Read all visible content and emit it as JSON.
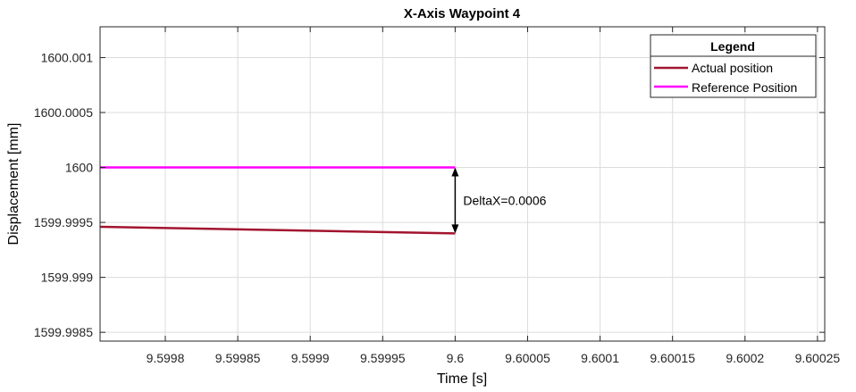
{
  "chart_data": {
    "type": "line",
    "title": "X-Axis Waypoint 4",
    "xlabel": "Time [s]",
    "ylabel": "Displacement [mm]",
    "xlim": [
      9.599755,
      9.600255
    ],
    "ylim": [
      1599.99842,
      1600.00128
    ],
    "x_ticks": [
      9.5998,
      9.59985,
      9.5999,
      9.59995,
      9.6,
      9.60005,
      9.6001,
      9.60015,
      9.6002,
      9.60025
    ],
    "x_tick_labels": [
      "9.5998",
      "9.59985",
      "9.5999",
      "9.59995",
      "9.6",
      "9.60005",
      "9.6001",
      "9.60015",
      "9.6002",
      "9.60025"
    ],
    "y_ticks": [
      1599.9985,
      1599.999,
      1599.9995,
      1600,
      1600.0005,
      1600.001
    ],
    "y_tick_labels": [
      "1599.9985",
      "1599.999",
      "1599.9995",
      "1600",
      "1600.0005",
      "1600.001"
    ],
    "grid": true,
    "legend": {
      "title": "Legend",
      "position": "top-right"
    },
    "series": [
      {
        "name": "Actual position",
        "color": "#a2142f",
        "x": [
          9.599755,
          9.6
        ],
        "y": [
          1599.99946,
          1599.9994
        ]
      },
      {
        "name": "Reference Position",
        "color": "#ff00ff",
        "x": [
          9.599755,
          9.6
        ],
        "y": [
          1600,
          1600
        ]
      }
    ],
    "annotation": {
      "text": "DeltaX=0.0006",
      "x": 9.6,
      "y_from": 1599.9994,
      "y_to": 1600,
      "color": "#000000"
    }
  }
}
